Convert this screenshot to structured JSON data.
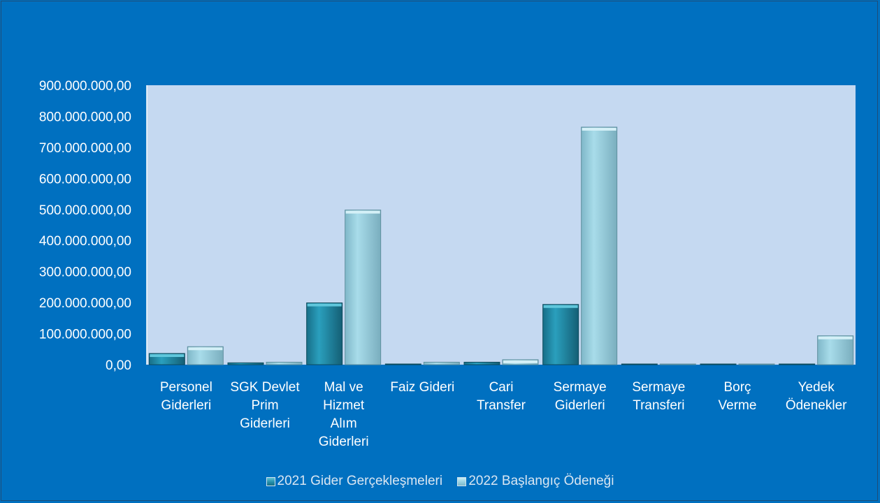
{
  "chart_data": {
    "type": "bar",
    "categories": [
      [
        "Personel",
        "Giderleri"
      ],
      [
        "SGK Devlet",
        "Prim",
        "Giderleri"
      ],
      [
        "Mal ve",
        "Hizmet",
        "Alım",
        "Giderleri"
      ],
      [
        "Faiz Gideri"
      ],
      [
        "Cari",
        "Transfer"
      ],
      [
        "Sermaye",
        "Giderleri"
      ],
      [
        "Sermaye",
        "Transferi"
      ],
      [
        "Borç",
        "Verme"
      ],
      [
        "Yedek",
        "Ödenekler"
      ]
    ],
    "series": [
      {
        "name": "2021 Gider Gerçekleşmeleri",
        "color": "#1f8aa6",
        "values": [
          36000000,
          6000000,
          199000000,
          1000000,
          8000000,
          194000000,
          0,
          0,
          0
        ]
      },
      {
        "name": "2022 Başlangıç Ödeneği",
        "color": "#94cfdf",
        "values": [
          58000000,
          8000000,
          498000000,
          8000000,
          16000000,
          765000000,
          1000000,
          0,
          93000000
        ]
      }
    ],
    "ylim": [
      0,
      900000000
    ],
    "yticks": [
      "0,00",
      "100.000.000,00",
      "200.000.000,00",
      "300.000.000,00",
      "400.000.000,00",
      "500.000.000,00",
      "600.000.000,00",
      "700.000.000,00",
      "800.000.000,00",
      "900.000.000,00"
    ],
    "legend_position": "bottom",
    "grid": false,
    "plot_background": "#c5d9f1",
    "page_background": "#0070c0"
  }
}
